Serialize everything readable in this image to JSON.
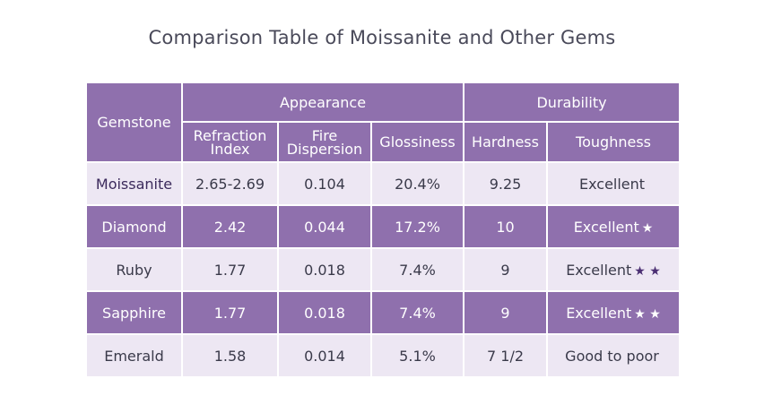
{
  "title": "Comparison Table of Moissanite and Other Gems",
  "headers": {
    "gemstone": "Gemstone",
    "appearance": "Appearance",
    "durability": "Durability",
    "refraction_l1": "Refraction",
    "refraction_l2": "Index",
    "fire_l1": "Fire",
    "fire_l2": "Dispersion",
    "glossiness": "Glossiness",
    "hardness": "Hardness",
    "toughness": "Toughness"
  },
  "rows": [
    {
      "gem": "Moissanite",
      "refraction": "2.65-2.69",
      "fire": "0.104",
      "gloss": "20.4%",
      "hardness": "9.25",
      "toughness": "Excellent",
      "stars": ""
    },
    {
      "gem": "Diamond",
      "refraction": "2.42",
      "fire": "0.044",
      "gloss": "17.2%",
      "hardness": "10",
      "toughness": "Excellent",
      "stars": "★"
    },
    {
      "gem": "Ruby",
      "refraction": "1.77",
      "fire": "0.018",
      "gloss": "7.4%",
      "hardness": "9",
      "toughness": "Excellent",
      "stars": "★ ★"
    },
    {
      "gem": "Sapphire",
      "refraction": "1.77",
      "fire": "0.018",
      "gloss": "7.4%",
      "hardness": "9",
      "toughness": "Excellent",
      "stars": "★ ★"
    },
    {
      "gem": "Emerald",
      "refraction": "1.58",
      "fire": "0.014",
      "gloss": "5.1%",
      "hardness": "7 1/2",
      "toughness": "Good to poor",
      "stars": ""
    }
  ]
}
